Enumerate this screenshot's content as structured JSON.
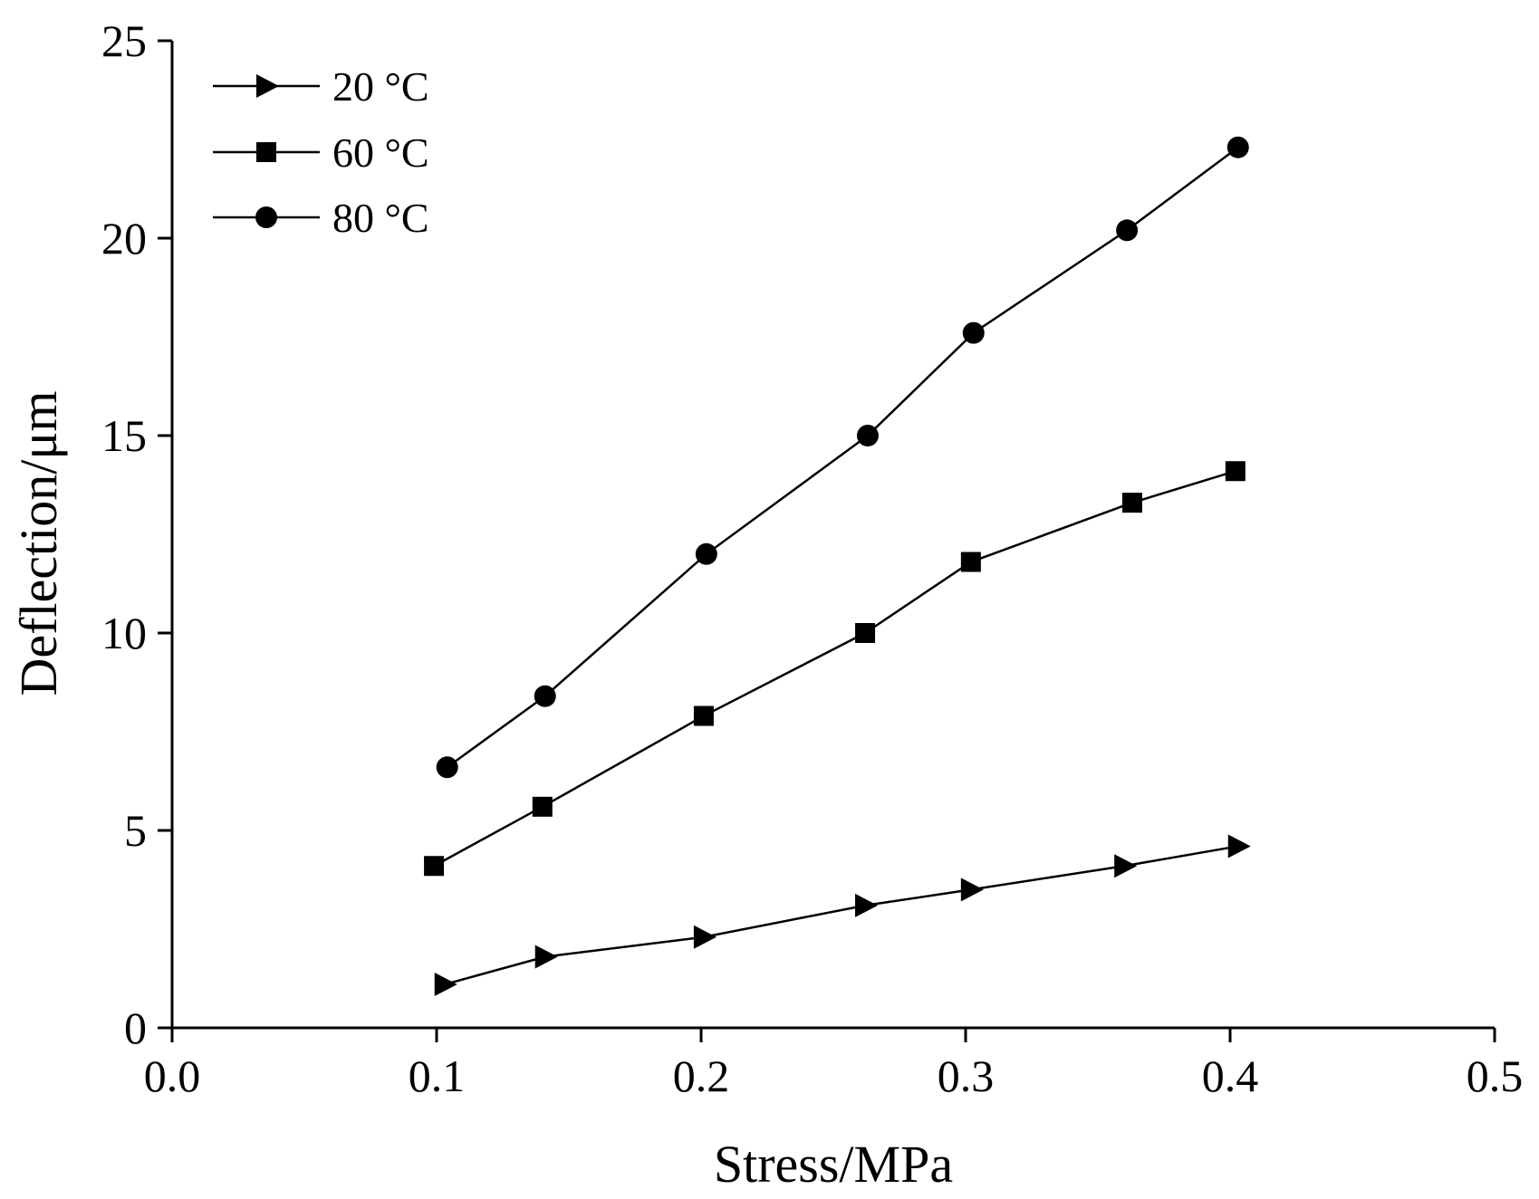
{
  "chart_data": {
    "type": "line",
    "title": "",
    "xlabel": "Stress/MPa",
    "ylabel": "Deflection/μm",
    "xlim": [
      0.0,
      0.5
    ],
    "ylim": [
      0,
      25
    ],
    "xticks": [
      "0.0",
      "0.1",
      "0.2",
      "0.3",
      "0.4",
      "0.5"
    ],
    "xtick_values": [
      0.0,
      0.1,
      0.2,
      0.3,
      0.4,
      0.5
    ],
    "yticks": [
      "0",
      "5",
      "10",
      "15",
      "20",
      "25"
    ],
    "ytick_values": [
      0,
      5,
      10,
      15,
      20,
      25
    ],
    "grid": false,
    "legend_position": "top-left",
    "series": [
      {
        "name": "20 °C",
        "marker": "triangle-right",
        "color": "#000000",
        "x": [
          0.103,
          0.141,
          0.201,
          0.262,
          0.302,
          0.36,
          0.403
        ],
        "y": [
          1.1,
          1.8,
          2.3,
          3.1,
          3.5,
          4.1,
          4.6
        ]
      },
      {
        "name": "60 °C",
        "marker": "square",
        "color": "#000000",
        "x": [
          0.099,
          0.14,
          0.201,
          0.262,
          0.302,
          0.363,
          0.402
        ],
        "y": [
          4.1,
          5.6,
          7.9,
          10.0,
          11.8,
          13.3,
          14.1
        ]
      },
      {
        "name": "80 °C",
        "marker": "circle",
        "color": "#000000",
        "x": [
          0.104,
          0.141,
          0.202,
          0.263,
          0.303,
          0.361,
          0.403
        ],
        "y": [
          6.6,
          8.4,
          12.0,
          15.0,
          17.6,
          20.2,
          22.3
        ]
      }
    ]
  }
}
